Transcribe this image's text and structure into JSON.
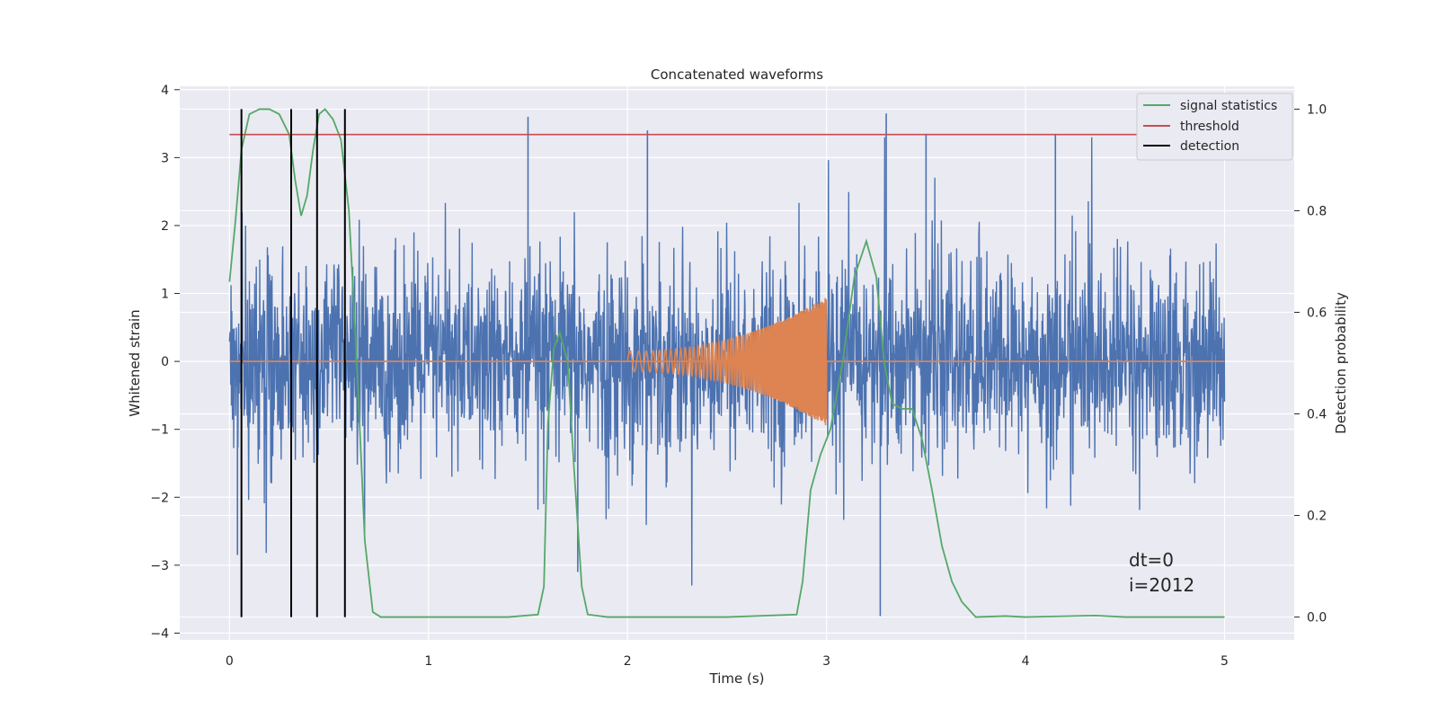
{
  "chart_data": {
    "type": "line",
    "title": "Concatenated waveforms",
    "xlabel": "Time (s)",
    "ylabel": "Whitened strain",
    "y2label": "Detection probability",
    "xlim": [
      -0.25,
      5.35
    ],
    "ylim": [
      -4.1,
      4.05
    ],
    "y2lim": [
      -0.045,
      1.045
    ],
    "xticks": [
      0,
      1,
      2,
      3,
      4,
      5
    ],
    "yticks": [
      -4,
      -3,
      -2,
      -1,
      0,
      1,
      2,
      3,
      4
    ],
    "y2ticks": [
      0.0,
      0.2,
      0.4,
      0.6,
      0.8,
      1.0
    ],
    "y2ticklabels": [
      "0.0",
      "0.2",
      "0.4",
      "0.6",
      "0.8",
      "1.0"
    ],
    "yticklabels": [
      "−4",
      "−3",
      "−2",
      "−1",
      "0",
      "1",
      "2",
      "3",
      "4"
    ],
    "grid": true,
    "legend_position": "top-right",
    "annotations": [
      "dt=0",
      "i=2012"
    ],
    "series": [
      {
        "name": "",
        "axis": "left",
        "color": "#4c72b0",
        "kind": "noise",
        "x_range": [
          0,
          5
        ],
        "amplitude": 0.7,
        "peak_values": [
          {
            "x": 1.5,
            "y": 3.6
          },
          {
            "x": 3.3,
            "y": 3.65
          },
          {
            "x": 3.27,
            "y": -3.75
          },
          {
            "x": 2.1,
            "y": 3.4
          },
          {
            "x": 3.5,
            "y": 3.35
          },
          {
            "x": 4.15,
            "y": 3.35
          },
          {
            "x": 1.75,
            "y": -3.1
          },
          {
            "x": 0.04,
            "y": -2.85
          }
        ]
      },
      {
        "name": "",
        "axis": "left",
        "color": "#dd8452",
        "kind": "chirp",
        "x_range": [
          2.0,
          3.0
        ],
        "amplitude_start": 0.15,
        "amplitude_end": 0.95,
        "baseline": 0
      },
      {
        "name": "signal statistics",
        "axis": "right",
        "color": "#55a868",
        "x": [
          0,
          0.03,
          0.06,
          0.1,
          0.15,
          0.2,
          0.25,
          0.3,
          0.33,
          0.36,
          0.39,
          0.42,
          0.45,
          0.48,
          0.52,
          0.56,
          0.6,
          0.64,
          0.68,
          0.72,
          0.76,
          0.8,
          1.0,
          1.4,
          1.55,
          1.58,
          1.6,
          1.63,
          1.66,
          1.7,
          1.73,
          1.77,
          1.8,
          1.9,
          2.5,
          2.85,
          2.88,
          2.92,
          2.97,
          3.02,
          3.08,
          3.14,
          3.2,
          3.25,
          3.29,
          3.33,
          3.38,
          3.43,
          3.48,
          3.53,
          3.58,
          3.63,
          3.68,
          3.75,
          3.9,
          4.0,
          4.35,
          4.5,
          5.0
        ],
        "values": [
          0.66,
          0.78,
          0.92,
          0.99,
          1.0,
          1.0,
          0.99,
          0.95,
          0.86,
          0.79,
          0.83,
          0.92,
          0.99,
          1.0,
          0.98,
          0.94,
          0.8,
          0.5,
          0.15,
          0.01,
          0.0,
          0.0,
          0.0,
          0.0,
          0.005,
          0.06,
          0.38,
          0.53,
          0.56,
          0.5,
          0.3,
          0.06,
          0.005,
          0.0,
          0.0,
          0.005,
          0.07,
          0.25,
          0.32,
          0.37,
          0.5,
          0.67,
          0.74,
          0.67,
          0.5,
          0.42,
          0.41,
          0.41,
          0.35,
          0.25,
          0.14,
          0.07,
          0.03,
          0.0,
          0.002,
          0.0,
          0.003,
          0.0,
          0.0
        ]
      },
      {
        "name": "threshold",
        "axis": "right",
        "color": "#c44e52",
        "x": [
          0,
          5
        ],
        "values": [
          0.95,
          0.95
        ]
      },
      {
        "name": "detection",
        "axis": "right",
        "color": "#000000",
        "kind": "vlines",
        "x": [
          0.06,
          0.31,
          0.44,
          0.58
        ],
        "ymin": 0.0,
        "ymax": 1.0
      }
    ]
  },
  "legend": {
    "items": [
      {
        "label": "signal statistics",
        "color": "#55a868"
      },
      {
        "label": "threshold",
        "color": "#c44e52"
      },
      {
        "label": "detection",
        "color": "#000000"
      }
    ]
  }
}
